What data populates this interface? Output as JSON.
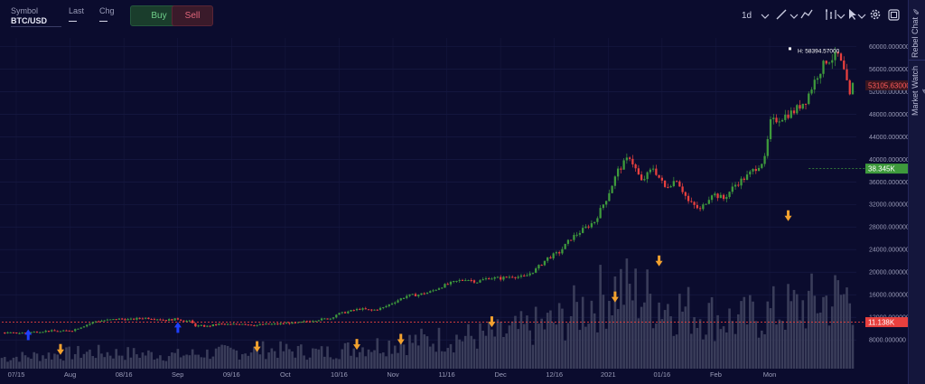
{
  "toolbar": {
    "symbol_label": "Symbol",
    "symbol_value": "BTC/USD",
    "last_label": "Last",
    "last_value": "—",
    "chg_label": "Chg",
    "chg_value": "—",
    "buy_label": "Buy",
    "sell_label": "Sell",
    "interval": "1d"
  },
  "side_tabs": [
    "Rebel Chat",
    "Market Watch"
  ],
  "colors": {
    "up": "#3e9a3c",
    "down": "#e8403e",
    "volume": "#3a3d5a",
    "arrow_up": "#1e3fff",
    "arrow_down": "#f2a12e",
    "background": "#0b0c2e"
  },
  "chart_data": {
    "type": "candlestick",
    "y_ticks": [
      8000,
      12000,
      16000,
      20000,
      24000,
      28000,
      32000,
      36000,
      40000,
      44000,
      48000,
      52000,
      56000,
      60000
    ],
    "y_tick_labels": [
      "8000.000000",
      "12000.000000",
      "16000.000000",
      "20000.000000",
      "24000.000000",
      "28000.000000",
      "32000.000000",
      "36000.000000",
      "40000.000000",
      "44000.000000",
      "48000.000000",
      "52000.000000",
      "56000.000000",
      "60000.000000"
    ],
    "ylim": [
      4500,
      61500
    ],
    "x_labels": [
      "07/15",
      "Aug",
      "08/16",
      "Sep",
      "09/16",
      "Oct",
      "10/16",
      "Nov",
      "11/16",
      "Dec",
      "12/16",
      "2021",
      "01/16",
      "Feb",
      "Mon"
    ],
    "price_labels": [
      {
        "text": "H: 58394.57000",
        "value": 58394.57
      },
      {
        "text": "53105.63000",
        "value": 53105.63
      },
      {
        "text": "38.345K",
        "value": 38345
      },
      {
        "text": "11.138K",
        "value": 11138
      }
    ],
    "close_path": [
      [
        0,
        9300
      ],
      [
        4,
        9200
      ],
      [
        8,
        9250
      ],
      [
        12,
        9450
      ],
      [
        16,
        9600
      ],
      [
        20,
        9500
      ],
      [
        24,
        9700
      ],
      [
        28,
        10500
      ],
      [
        32,
        11300
      ],
      [
        36,
        11500
      ],
      [
        40,
        11700
      ],
      [
        44,
        11600
      ],
      [
        48,
        11900
      ],
      [
        52,
        11800
      ],
      [
        56,
        11500
      ],
      [
        60,
        11700
      ],
      [
        62,
        11400
      ],
      [
        64,
        11300
      ],
      [
        66,
        10500
      ],
      [
        70,
        10400
      ],
      [
        74,
        10800
      ],
      [
        78,
        10700
      ],
      [
        82,
        10900
      ],
      [
        86,
        10600
      ],
      [
        90,
        10750
      ],
      [
        94,
        10800
      ],
      [
        98,
        11000
      ],
      [
        100,
        10900
      ],
      [
        104,
        11300
      ],
      [
        108,
        11600
      ],
      [
        112,
        11800
      ],
      [
        114,
        12500
      ],
      [
        118,
        13000
      ],
      [
        122,
        13500
      ],
      [
        126,
        13200
      ],
      [
        130,
        13700
      ],
      [
        134,
        14800
      ],
      [
        138,
        15800
      ],
      [
        142,
        16000
      ],
      [
        146,
        16500
      ],
      [
        150,
        17500
      ],
      [
        154,
        18200
      ],
      [
        158,
        18800
      ],
      [
        162,
        18300
      ],
      [
        166,
        19000
      ],
      [
        170,
        18900
      ],
      [
        174,
        19300
      ],
      [
        178,
        19100
      ],
      [
        182,
        20500
      ],
      [
        186,
        22500
      ],
      [
        190,
        23500
      ],
      [
        194,
        26000
      ],
      [
        198,
        27500
      ],
      [
        202,
        29000
      ],
      [
        206,
        33000
      ],
      [
        210,
        38000
      ],
      [
        214,
        40500
      ],
      [
        218,
        36000
      ],
      [
        222,
        38500
      ],
      [
        226,
        35000
      ],
      [
        230,
        36500
      ],
      [
        234,
        32500
      ],
      [
        238,
        31000
      ],
      [
        242,
        34000
      ],
      [
        246,
        33000
      ],
      [
        250,
        35500
      ],
      [
        254,
        37000
      ],
      [
        256,
        38000
      ],
      [
        260,
        40000
      ],
      [
        262,
        46500
      ],
      [
        266,
        47500
      ],
      [
        270,
        48500
      ],
      [
        274,
        50500
      ],
      [
        278,
        55000
      ],
      [
        281,
        57500
      ],
      [
        285,
        58394
      ],
      [
        287,
        55500
      ],
      [
        289,
        51000
      ],
      [
        290,
        53105
      ]
    ],
    "volume_path": [
      [
        0,
        0.08
      ],
      [
        30,
        0.12
      ],
      [
        60,
        0.1
      ],
      [
        90,
        0.14
      ],
      [
        110,
        0.12
      ],
      [
        130,
        0.18
      ],
      [
        150,
        0.22
      ],
      [
        170,
        0.25
      ],
      [
        190,
        0.35
      ],
      [
        210,
        0.6
      ],
      [
        230,
        0.45
      ],
      [
        250,
        0.35
      ],
      [
        270,
        0.45
      ],
      [
        290,
        0.55
      ]
    ],
    "arrows_up": [
      [
        9,
        8900
      ],
      [
        60,
        10200
      ]
    ],
    "arrows_down": [
      [
        20,
        6300
      ],
      [
        87,
        6800
      ],
      [
        121,
        7200
      ],
      [
        136,
        8100
      ],
      [
        167,
        11200
      ],
      [
        209,
        15600
      ],
      [
        224,
        22000
      ],
      [
        268,
        30000
      ]
    ],
    "dashed_levels": [
      {
        "value": 38345,
        "from": 275,
        "color": "#3e9a3c"
      },
      {
        "value": 11138,
        "from": 0,
        "color": "#e8403e"
      }
    ]
  }
}
